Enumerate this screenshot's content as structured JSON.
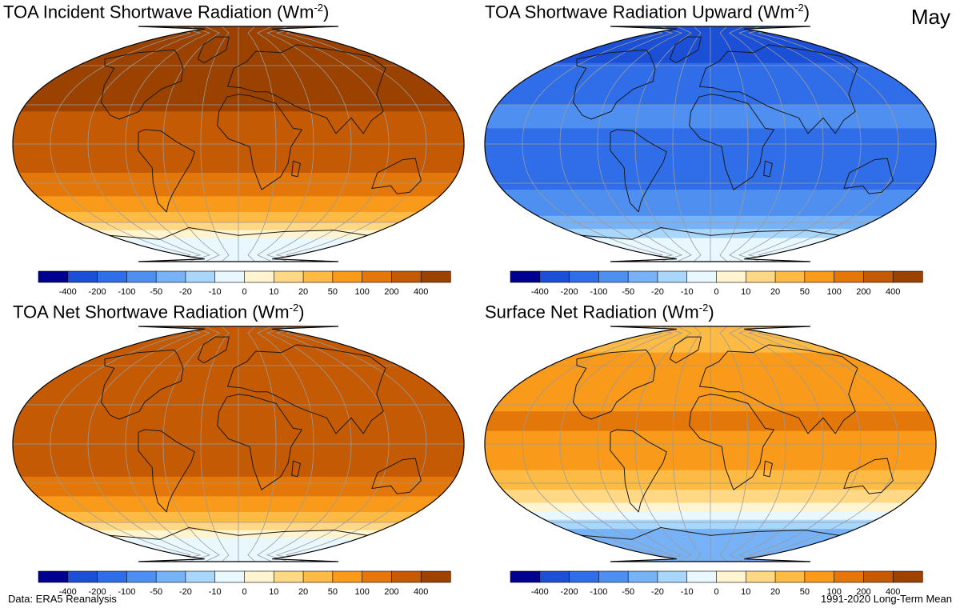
{
  "month": "May",
  "footer": {
    "source": "Data: ERA5 Reanalysis",
    "period": "1991-2020 Long-Term Mean"
  },
  "colorbar": {
    "colors": [
      "#000090",
      "#1a4fd6",
      "#2f6ee8",
      "#4f8ff0",
      "#77b2f6",
      "#a9d6fb",
      "#e9f8ff",
      "#fff4d0",
      "#fed884",
      "#fdbb45",
      "#f99a1b",
      "#e47709",
      "#c45a04",
      "#9b4200"
    ],
    "ticks": [
      "-400",
      "-200",
      "-100",
      "-50",
      "-20",
      "-10",
      "0",
      "10",
      "20",
      "50",
      "100",
      "200",
      "400"
    ]
  },
  "panels": [
    {
      "title": "TOA Incident Shortwave Radiation (Wm",
      "title_sup": "-2",
      "title_end": ")",
      "bands": [
        {
          "lat_from": 90,
          "lat_to": 25,
          "color": "#9b4200"
        },
        {
          "lat_from": 25,
          "lat_to": -22,
          "color": "#c45a04"
        },
        {
          "lat_from": -22,
          "lat_to": -40,
          "color": "#e47709"
        },
        {
          "lat_from": -40,
          "lat_to": -52,
          "color": "#f99a1b"
        },
        {
          "lat_from": -52,
          "lat_to": -60,
          "color": "#fdbb45"
        },
        {
          "lat_from": -60,
          "lat_to": -66,
          "color": "#fed884"
        },
        {
          "lat_from": -66,
          "lat_to": -72,
          "color": "#fff4d0"
        },
        {
          "lat_from": -72,
          "lat_to": -90,
          "color": "#e9f8ff"
        }
      ]
    },
    {
      "title": "TOA Shortwave Radiation Upward (Wm",
      "title_sup": "-2",
      "title_end": ")",
      "bands": [
        {
          "lat_from": 90,
          "lat_to": 62,
          "color": "#1a4fd6"
        },
        {
          "lat_from": 62,
          "lat_to": 30,
          "color": "#2f6ee8"
        },
        {
          "lat_from": 30,
          "lat_to": 12,
          "color": "#4f8ff0"
        },
        {
          "lat_from": 12,
          "lat_to": -35,
          "color": "#2f6ee8"
        },
        {
          "lat_from": -35,
          "lat_to": -55,
          "color": "#4f8ff0"
        },
        {
          "lat_from": -55,
          "lat_to": -65,
          "color": "#77b2f6"
        },
        {
          "lat_from": -65,
          "lat_to": -72,
          "color": "#a9d6fb"
        },
        {
          "lat_from": -72,
          "lat_to": -90,
          "color": "#e9f8ff"
        }
      ]
    },
    {
      "title": "TOA Net Shortwave Radiation (Wm",
      "title_sup": "-2",
      "title_end": ")",
      "bands": [
        {
          "lat_from": 90,
          "lat_to": 72,
          "color": "#c45a04"
        },
        {
          "lat_from": 72,
          "lat_to": -25,
          "color": "#c45a04"
        },
        {
          "lat_from": -25,
          "lat_to": -40,
          "color": "#e47709"
        },
        {
          "lat_from": -40,
          "lat_to": -52,
          "color": "#f99a1b"
        },
        {
          "lat_from": -52,
          "lat_to": -60,
          "color": "#fdbb45"
        },
        {
          "lat_from": -60,
          "lat_to": -66,
          "color": "#fed884"
        },
        {
          "lat_from": -66,
          "lat_to": -72,
          "color": "#fff4d0"
        },
        {
          "lat_from": -72,
          "lat_to": -90,
          "color": "#e9f8ff"
        }
      ]
    },
    {
      "title": "Surface Net Radiation (Wm",
      "title_sup": "-2",
      "title_end": ")",
      "bands": [
        {
          "lat_from": 90,
          "lat_to": 70,
          "color": "#fdbb45"
        },
        {
          "lat_from": 70,
          "lat_to": 25,
          "color": "#f99a1b"
        },
        {
          "lat_from": 25,
          "lat_to": 10,
          "color": "#e47709"
        },
        {
          "lat_from": 10,
          "lat_to": -20,
          "color": "#f99a1b"
        },
        {
          "lat_from": -20,
          "lat_to": -35,
          "color": "#fdbb45"
        },
        {
          "lat_from": -35,
          "lat_to": -45,
          "color": "#fed884"
        },
        {
          "lat_from": -45,
          "lat_to": -52,
          "color": "#fff4d0"
        },
        {
          "lat_from": -52,
          "lat_to": -58,
          "color": "#e9f8ff"
        },
        {
          "lat_from": -58,
          "lat_to": -65,
          "color": "#a9d6fb"
        },
        {
          "lat_from": -65,
          "lat_to": -90,
          "color": "#77b2f6"
        }
      ]
    }
  ]
}
